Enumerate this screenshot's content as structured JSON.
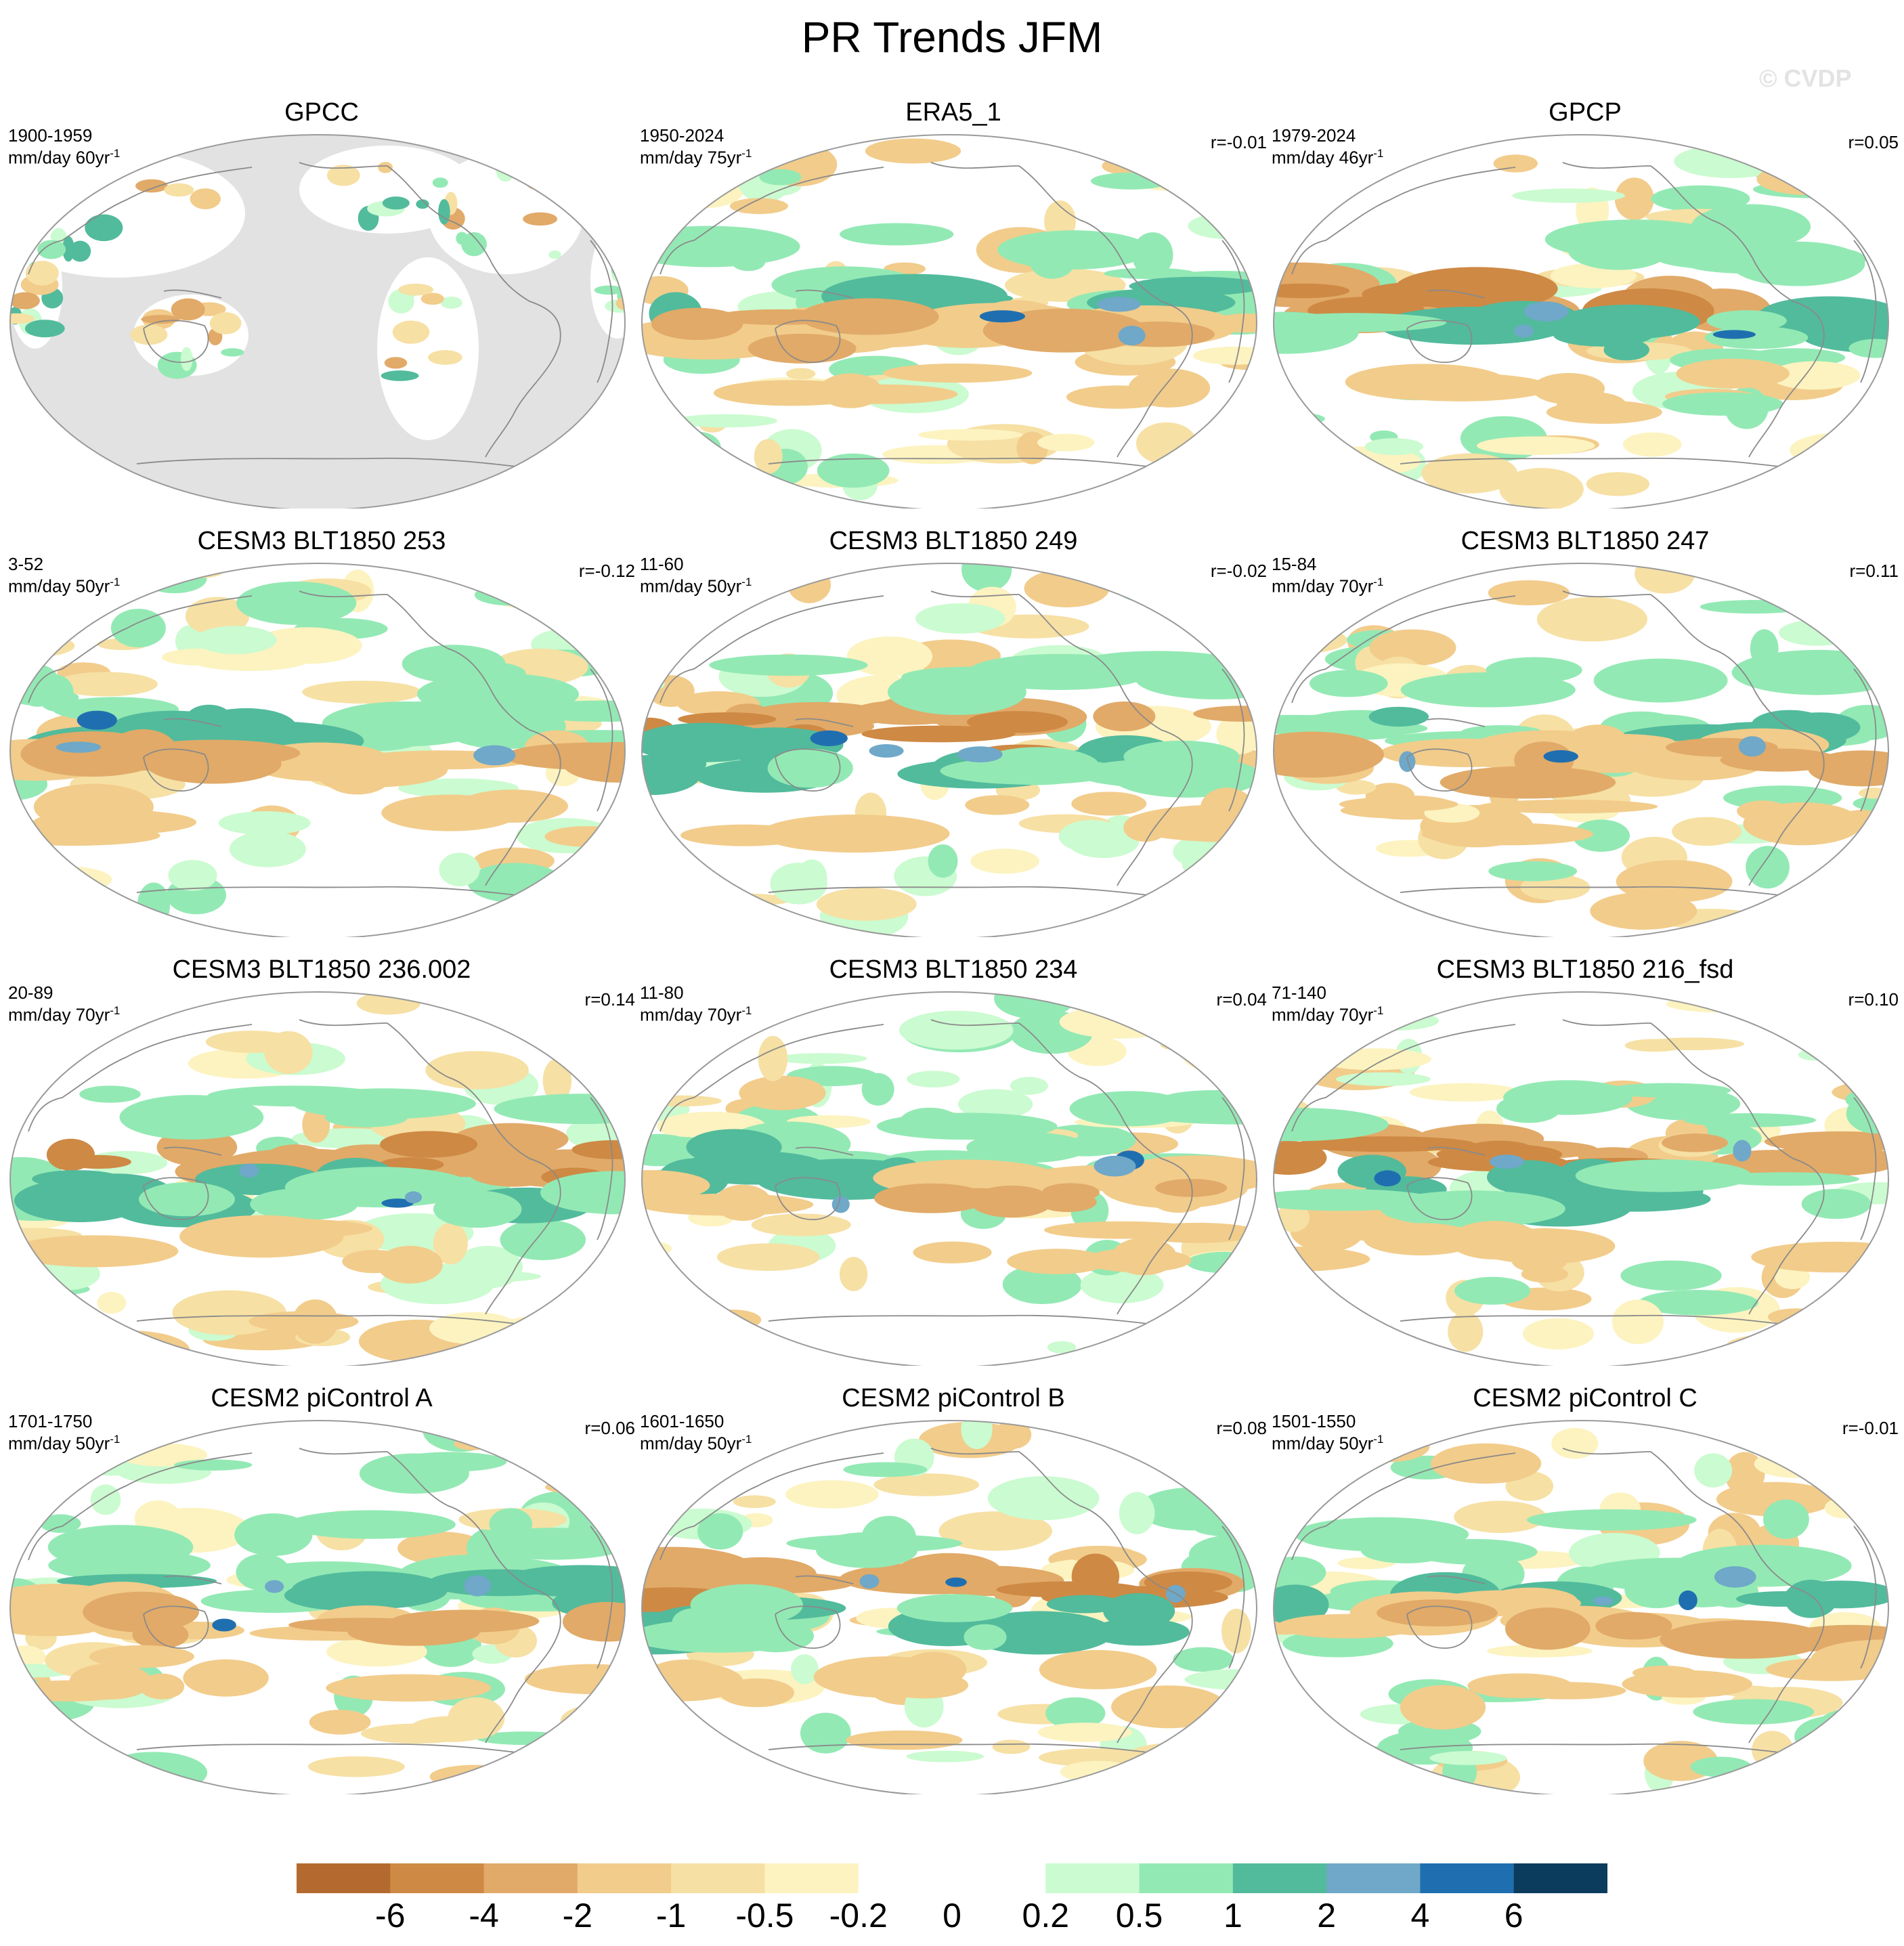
{
  "title": "PR Trends JFM",
  "watermark": "© CVDP",
  "palette": {
    "brown_dark": "#b46a2e",
    "brown": "#ce8944",
    "tan": "#e1aa68",
    "sand": "#f2cc8b",
    "beige": "#f6e0a4",
    "cream": "#fcf3c0",
    "white": "#ffffff",
    "mint_light": "#cbfbd0",
    "mint": "#93e9b4",
    "teal": "#52bb9c",
    "steel": "#6fa8c8",
    "blue": "#1f6fb0",
    "navy": "#0b3c5d",
    "land_mask": "#e2e2e2"
  },
  "panels": [
    {
      "title": "GPCC",
      "years": "1900-1959",
      "units": "mm/day 60yr",
      "units_sup": "-1",
      "corr": "",
      "masked": true
    },
    {
      "title": "ERA5_1",
      "years": "1950-2024",
      "units": "mm/day 75yr",
      "units_sup": "-1",
      "corr": "r=-0.01",
      "masked": false
    },
    {
      "title": "GPCP",
      "years": "1979-2024",
      "units": "mm/day 46yr",
      "units_sup": "-1",
      "corr": "r=0.05",
      "masked": false
    },
    {
      "title": "CESM3 BLT1850 253",
      "years": "3-52",
      "units": "mm/day 50yr",
      "units_sup": "-1",
      "corr": "r=-0.12",
      "masked": false
    },
    {
      "title": "CESM3 BLT1850 249",
      "years": "11-60",
      "units": "mm/day 50yr",
      "units_sup": "-1",
      "corr": "r=-0.02",
      "masked": false
    },
    {
      "title": "CESM3 BLT1850 247",
      "years": "15-84",
      "units": "mm/day 70yr",
      "units_sup": "-1",
      "corr": "r=0.11",
      "masked": false
    },
    {
      "title": "CESM3 BLT1850 236.002",
      "years": "20-89",
      "units": "mm/day 70yr",
      "units_sup": "-1",
      "corr": "r=0.14",
      "masked": false
    },
    {
      "title": "CESM3 BLT1850 234",
      "years": "11-80",
      "units": "mm/day 70yr",
      "units_sup": "-1",
      "corr": "r=0.04",
      "masked": false
    },
    {
      "title": "CESM3 BLT1850 216_fsd",
      "years": "71-140",
      "units": "mm/day 70yr",
      "units_sup": "-1",
      "corr": "r=0.10",
      "masked": false
    },
    {
      "title": "CESM2 piControl A",
      "years": "1701-1750",
      "units": "mm/day 50yr",
      "units_sup": "-1",
      "corr": "r=0.06",
      "masked": false
    },
    {
      "title": "CESM2 piControl B",
      "years": "1601-1650",
      "units": "mm/day 50yr",
      "units_sup": "-1",
      "corr": "r=0.08",
      "masked": false
    },
    {
      "title": "CESM2 piControl C",
      "years": "1501-1550",
      "units": "mm/day 50yr",
      "units_sup": "-1",
      "corr": "r=-0.01",
      "masked": false
    }
  ],
  "colorbar": {
    "colors": [
      "#b46a2e",
      "#ce8944",
      "#e1aa68",
      "#f2cc8b",
      "#f6e0a4",
      "#fcf3c0",
      "#ffffff",
      "#ffffff",
      "#cbfbd0",
      "#93e9b4",
      "#52bb9c",
      "#6fa8c8",
      "#1f6fb0",
      "#0b3c5d"
    ],
    "ticks": [
      "-6",
      "-4",
      "-2",
      "-1",
      "-0.5",
      "-0.2",
      "0",
      "0.2",
      "0.5",
      "1",
      "2",
      "4",
      "6"
    ]
  }
}
